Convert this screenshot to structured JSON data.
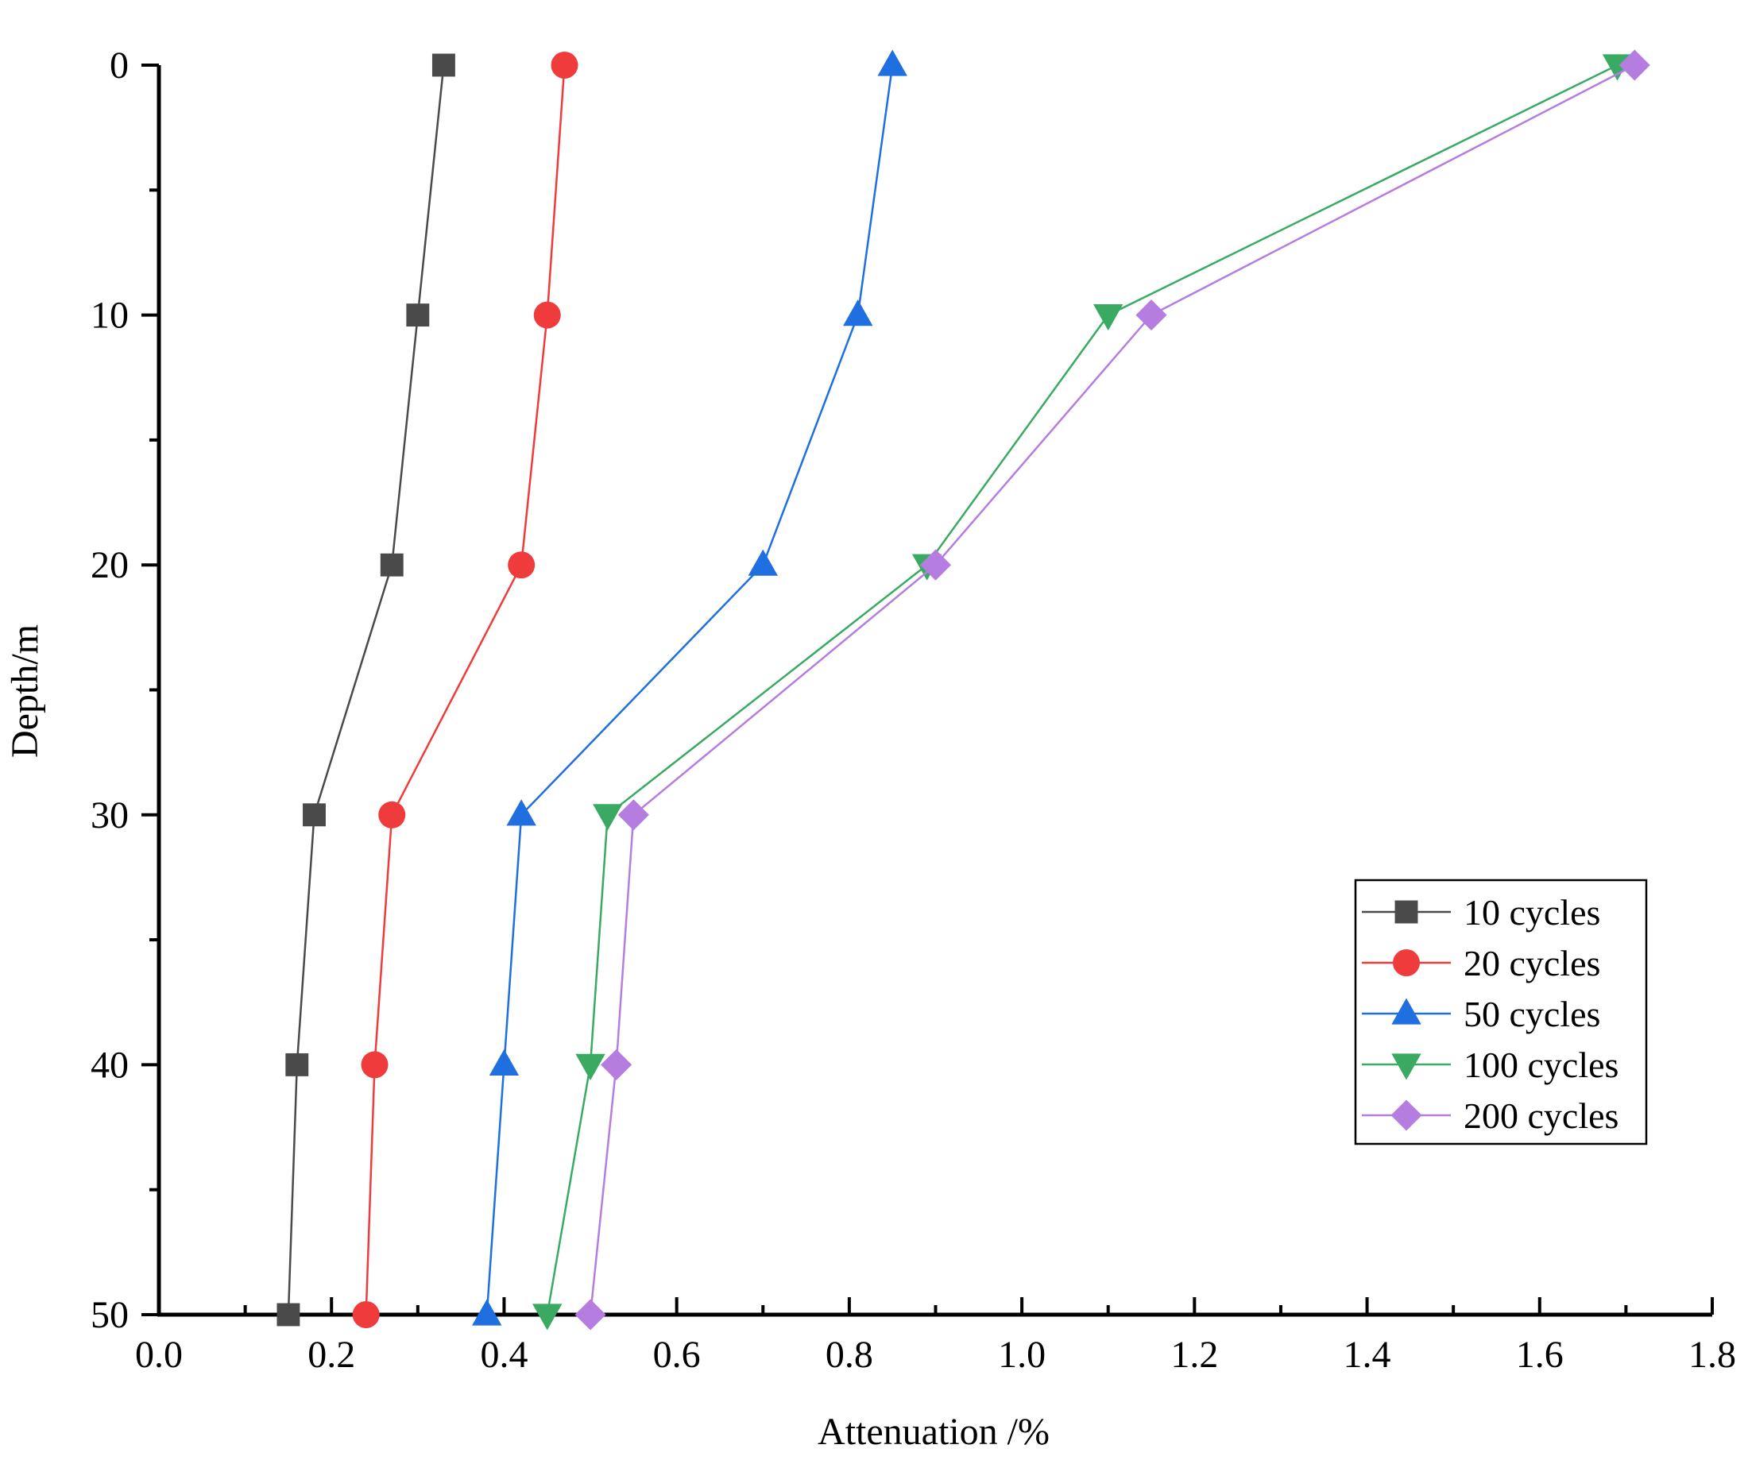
{
  "chart_data": {
    "type": "line",
    "title": "",
    "xlabel": "Attenuation /%",
    "ylabel": "Depth/m",
    "xlim": [
      0.0,
      1.8
    ],
    "ylim": [
      0,
      50
    ],
    "y_inverted": true,
    "x_ticks": [
      "0.0",
      "0.2",
      "0.4",
      "0.6",
      "0.8",
      "1.0",
      "1.2",
      "1.4",
      "1.6",
      "1.8"
    ],
    "y_ticks": [
      "0",
      "10",
      "20",
      "30",
      "40",
      "50"
    ],
    "grid": false,
    "legend_position": "bottom-right",
    "series": [
      {
        "name": "10 cycles",
        "color": "#4a4a4a",
        "marker": "square",
        "points": [
          {
            "x": 0.33,
            "y": 0
          },
          {
            "x": 0.3,
            "y": 10
          },
          {
            "x": 0.27,
            "y": 20
          },
          {
            "x": 0.18,
            "y": 30
          },
          {
            "x": 0.16,
            "y": 40
          },
          {
            "x": 0.15,
            "y": 50
          }
        ]
      },
      {
        "name": "20 cycles",
        "color": "#ef3b3b",
        "marker": "circle",
        "points": [
          {
            "x": 0.47,
            "y": 0
          },
          {
            "x": 0.45,
            "y": 10
          },
          {
            "x": 0.42,
            "y": 20
          },
          {
            "x": 0.27,
            "y": 30
          },
          {
            "x": 0.25,
            "y": 40
          },
          {
            "x": 0.24,
            "y": 50
          }
        ]
      },
      {
        "name": "50 cycles",
        "color": "#1f6fe0",
        "marker": "triangle-up",
        "points": [
          {
            "x": 0.85,
            "y": 0
          },
          {
            "x": 0.81,
            "y": 10
          },
          {
            "x": 0.7,
            "y": 20
          },
          {
            "x": 0.42,
            "y": 30
          },
          {
            "x": 0.4,
            "y": 40
          },
          {
            "x": 0.38,
            "y": 50
          }
        ]
      },
      {
        "name": "100 cycles",
        "color": "#3aaa63",
        "marker": "triangle-down",
        "points": [
          {
            "x": 1.69,
            "y": 0
          },
          {
            "x": 1.1,
            "y": 10
          },
          {
            "x": 0.89,
            "y": 20
          },
          {
            "x": 0.52,
            "y": 30
          },
          {
            "x": 0.5,
            "y": 40
          },
          {
            "x": 0.45,
            "y": 50
          }
        ]
      },
      {
        "name": "200 cycles",
        "color": "#b57de0",
        "marker": "diamond",
        "points": [
          {
            "x": 1.71,
            "y": 0
          },
          {
            "x": 1.15,
            "y": 10
          },
          {
            "x": 0.9,
            "y": 20
          },
          {
            "x": 0.55,
            "y": 30
          },
          {
            "x": 0.53,
            "y": 40
          },
          {
            "x": 0.5,
            "y": 50
          }
        ]
      }
    ]
  }
}
